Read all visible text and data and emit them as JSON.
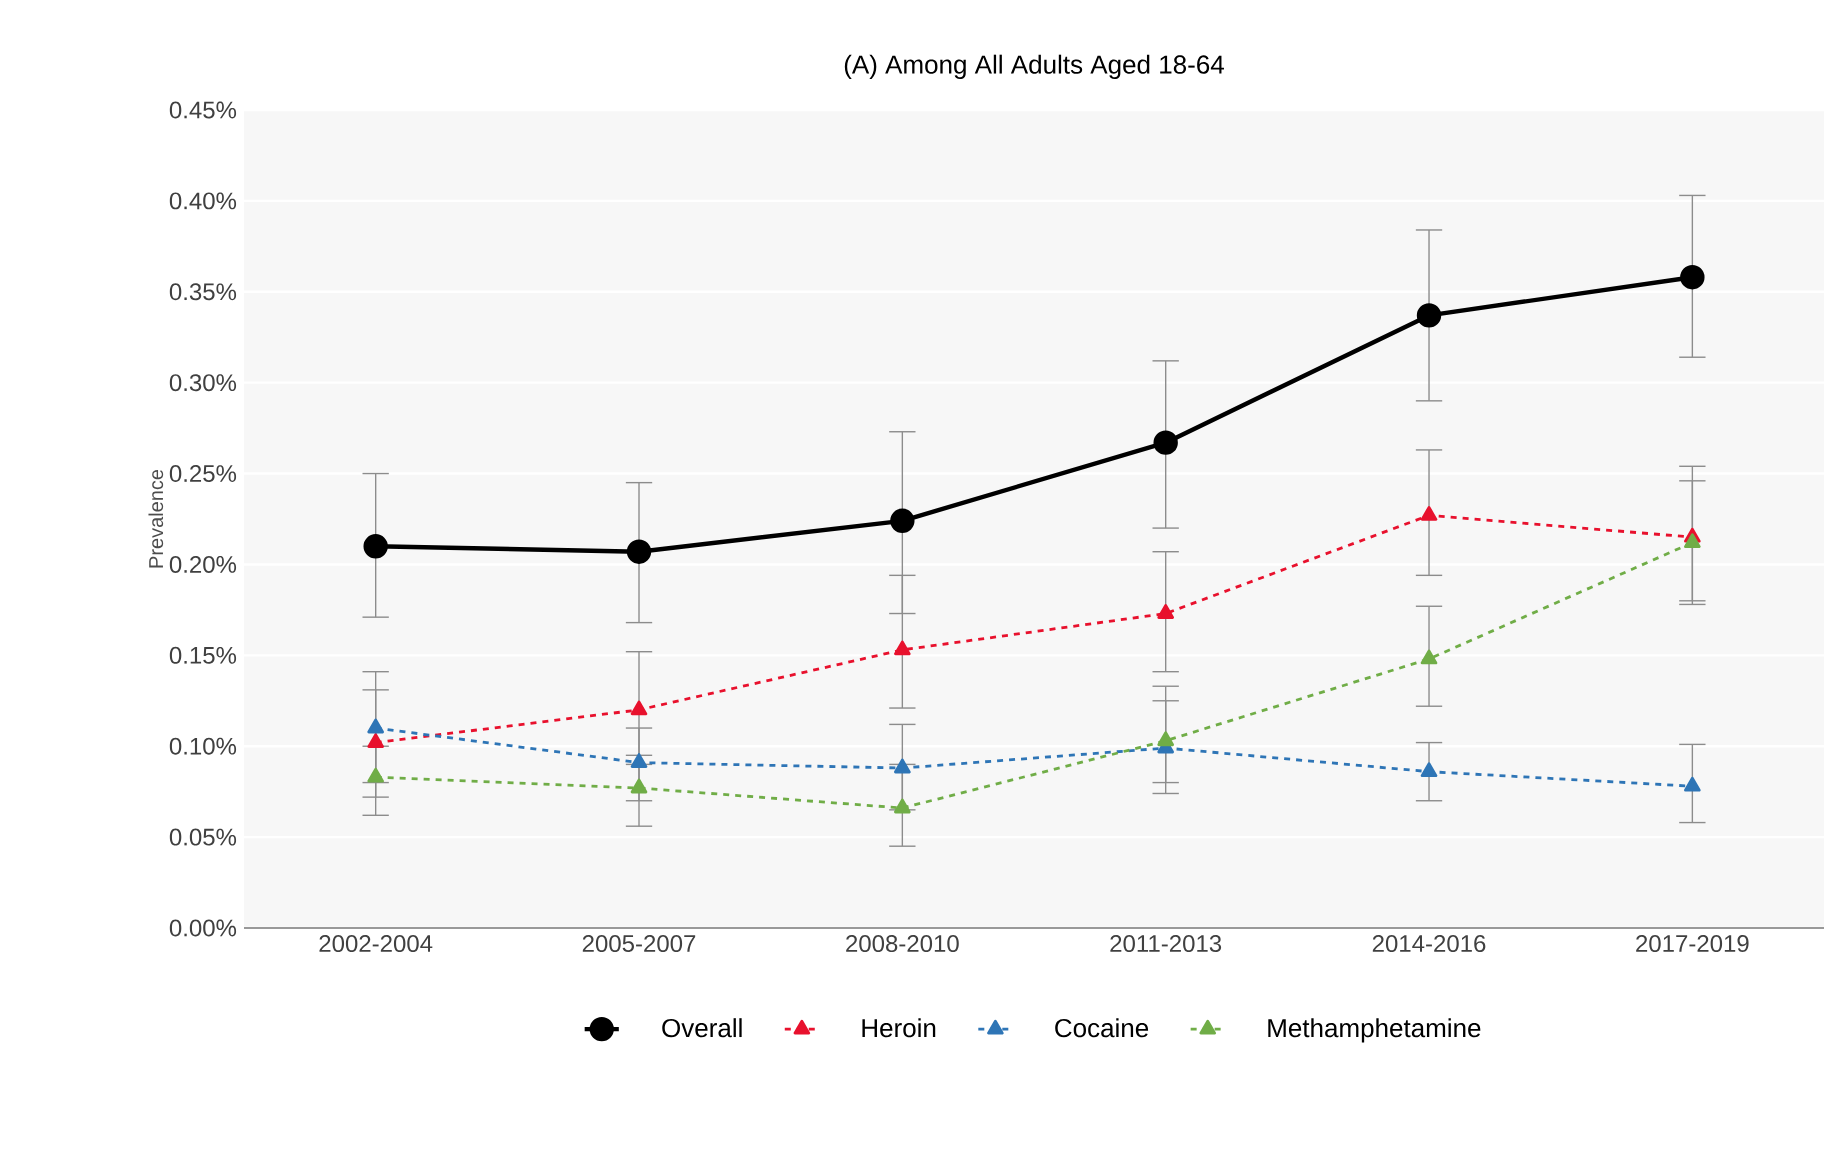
{
  "chart_data": {
    "type": "line",
    "title": "(A) Among All Adults Aged 18-64",
    "ylabel": "Prevalence",
    "categories": [
      "2002-2004",
      "2005-2007",
      "2008-2010",
      "2011-2013",
      "2014-2016",
      "2017-2019"
    ],
    "ylim": [
      0,
      0.45
    ],
    "yticks": [
      {
        "value": 0,
        "label": "0.00%"
      },
      {
        "value": 0.05,
        "label": "0.05%"
      },
      {
        "value": 0.1,
        "label": "0.10%"
      },
      {
        "value": 0.15,
        "label": "0.15%"
      },
      {
        "value": 0.2,
        "label": "0.20%"
      },
      {
        "value": 0.25,
        "label": "0.25%"
      },
      {
        "value": 0.3,
        "label": "0.30%"
      },
      {
        "value": 0.35,
        "label": "0.35%"
      },
      {
        "value": 0.4,
        "label": "0.40%"
      },
      {
        "value": 0.45,
        "label": "0.45%"
      }
    ],
    "grid": "y",
    "legend": "bottom",
    "series": [
      {
        "name": "Overall",
        "color": "#000000",
        "marker": "circle",
        "line_style": "solid",
        "values": [
          0.21,
          0.207,
          0.224,
          0.267,
          0.337,
          0.358
        ],
        "errors": [
          [
            0.171,
            0.25
          ],
          [
            0.168,
            0.245
          ],
          [
            0.173,
            0.273
          ],
          [
            0.22,
            0.312
          ],
          [
            0.29,
            0.384
          ],
          [
            0.314,
            0.403
          ]
        ]
      },
      {
        "name": "Heroin",
        "color": "#e8112d",
        "marker": "triangle",
        "line_style": "dashed",
        "values": [
          0.102,
          0.12,
          0.153,
          0.173,
          0.227,
          0.215
        ],
        "errors": [
          [
            0.072,
            0.131
          ],
          [
            0.09,
            0.152
          ],
          [
            0.121,
            0.194
          ],
          [
            0.141,
            0.207
          ],
          [
            0.194,
            0.263
          ],
          [
            0.18,
            0.254
          ]
        ]
      },
      {
        "name": "Cocaine",
        "color": "#2e75b6",
        "marker": "triangle",
        "line_style": "dashed",
        "values": [
          0.11,
          0.091,
          0.088,
          0.099,
          0.086,
          0.078
        ],
        "errors": [
          [
            0.08,
            0.141
          ],
          [
            0.07,
            0.11
          ],
          [
            0.065,
            0.112
          ],
          [
            0.074,
            0.125
          ],
          [
            0.07,
            0.102
          ],
          [
            0.058,
            0.101
          ]
        ]
      },
      {
        "name": "Methamphetamine",
        "color": "#70ad47",
        "marker": "triangle",
        "line_style": "dashed",
        "values": [
          0.083,
          0.077,
          0.066,
          0.103,
          0.148,
          0.212
        ],
        "errors": [
          [
            0.062,
            0.1
          ],
          [
            0.056,
            0.095
          ],
          [
            0.045,
            0.09
          ],
          [
            0.08,
            0.133
          ],
          [
            0.122,
            0.177
          ],
          [
            0.178,
            0.246
          ]
        ]
      }
    ]
  }
}
